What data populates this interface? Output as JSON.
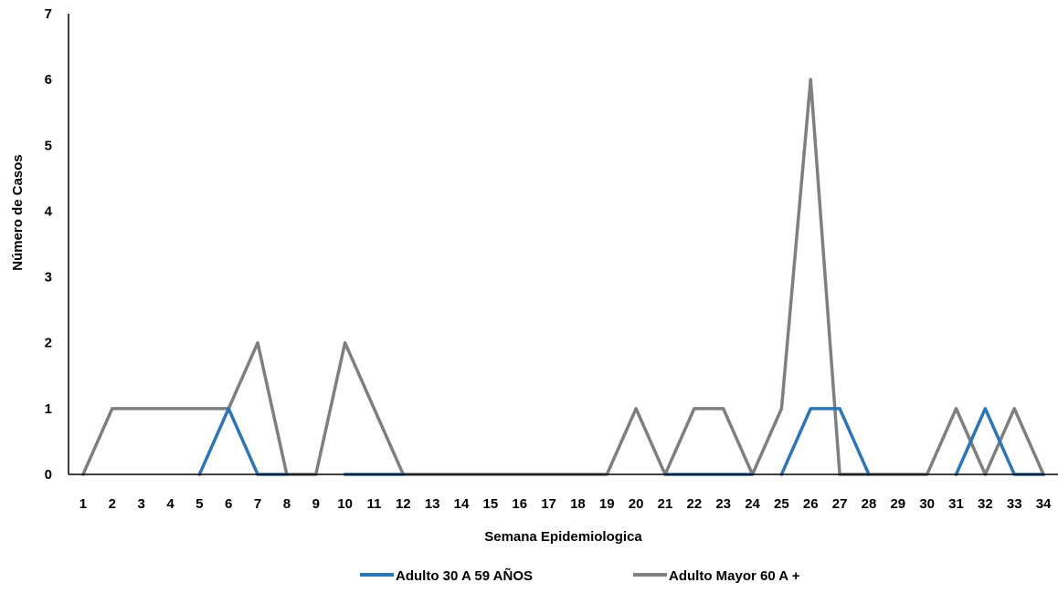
{
  "chart_data": {
    "type": "line",
    "title": "",
    "xlabel": "Semana Epidemiologica",
    "ylabel": "Número de Casos",
    "x": [
      1,
      2,
      3,
      4,
      5,
      6,
      7,
      8,
      9,
      10,
      11,
      12,
      13,
      14,
      15,
      16,
      17,
      18,
      19,
      20,
      21,
      22,
      23,
      24,
      25,
      26,
      27,
      28,
      29,
      30,
      31,
      32,
      33,
      34
    ],
    "x_tick_labels": [
      "1",
      "2",
      "3",
      "4",
      "5",
      "6",
      "7",
      "8",
      "9",
      "10",
      "11",
      "12",
      "13",
      "14",
      "15",
      "16",
      "17",
      "18",
      "19",
      "20",
      "21",
      "22",
      "23",
      "24",
      "25",
      "26",
      "27",
      "28",
      "29",
      "30",
      "31",
      "32",
      "33",
      "34"
    ],
    "ylim": [
      0,
      7
    ],
    "y_ticks": [
      0,
      1,
      2,
      3,
      4,
      5,
      6,
      7
    ],
    "y_tick_labels": [
      "0",
      "1",
      "2",
      "3",
      "4",
      "5",
      "6",
      "7"
    ],
    "grid": false,
    "legend_position": "bottom",
    "series": [
      {
        "name": "Adulto 30 A 59 AÑOS",
        "color": "#2e75b6",
        "segments": [
          {
            "x": [
              5,
              6,
              7,
              8
            ],
            "values": [
              0,
              1,
              0,
              0
            ]
          },
          {
            "x": [
              10,
              11,
              12
            ],
            "values": [
              0,
              0,
              0
            ]
          },
          {
            "x": [
              21,
              22,
              23,
              24
            ],
            "values": [
              0,
              0,
              0,
              0
            ]
          },
          {
            "x": [
              25,
              26,
              27,
              28
            ],
            "values": [
              0,
              1,
              1,
              0
            ]
          },
          {
            "x": [
              31,
              32,
              33,
              34
            ],
            "values": [
              0,
              1,
              0,
              0
            ]
          }
        ]
      },
      {
        "name": "Adulto Mayor 60 A +",
        "color": "#7f7f7f",
        "values": [
          0,
          1,
          1,
          1,
          1,
          1,
          2,
          0,
          0,
          2,
          1,
          0,
          0,
          0,
          0,
          0,
          0,
          0,
          0,
          1,
          0,
          1,
          1,
          0,
          1,
          6,
          0,
          0,
          0,
          0,
          1,
          0,
          1,
          0
        ]
      }
    ]
  }
}
